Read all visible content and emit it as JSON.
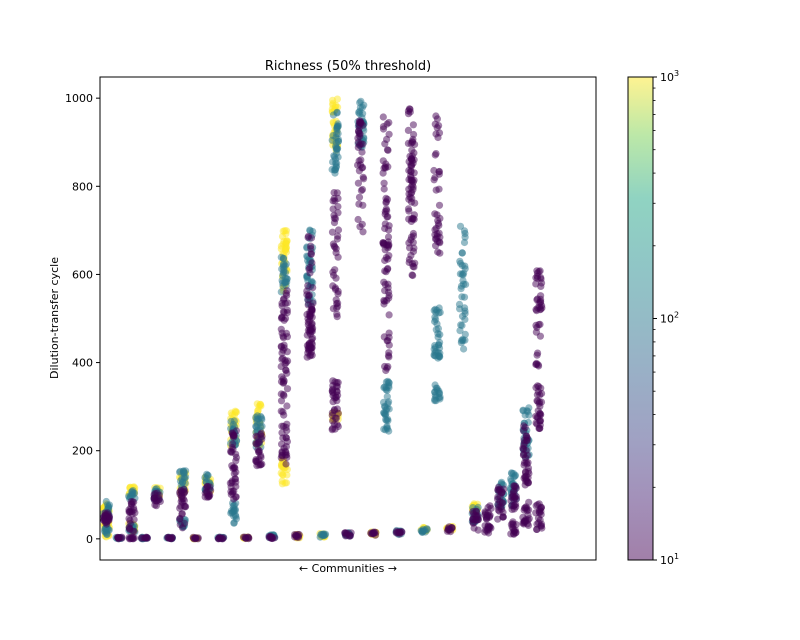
{
  "chart_data": {
    "type": "scatter",
    "title": "Richness (50% threshold)",
    "xlabel": "← Communities →",
    "ylabel": "Dilution-transfer cycle",
    "xlim": [
      -0.5,
      38.5
    ],
    "ylim": [
      -48,
      1048
    ],
    "yticks": [
      0,
      200,
      400,
      600,
      800,
      1000
    ],
    "xticks_shown": false,
    "grid": false,
    "colormap": "viridis",
    "marker_alpha": 0.5,
    "colorbar": {
      "scale": "log",
      "range": [
        10,
        1000
      ],
      "ticks": [
        {
          "value": 10,
          "base": "10",
          "exp": "1"
        },
        {
          "value": 100,
          "base": "10",
          "exp": "2"
        },
        {
          "value": 1000,
          "base": "10",
          "exp": "3"
        }
      ]
    },
    "groups": [
      {
        "x": 0,
        "clusters": [
          [
            20,
            20,
            1000
          ],
          [
            65,
            15,
            1000
          ],
          [
            20,
            10,
            100
          ],
          [
            65,
            20,
            100
          ],
          [
            45,
            15,
            10
          ],
          [
            50,
            10,
            10
          ]
        ]
      },
      {
        "x": 1,
        "clusters": [
          [
            2,
            2,
            100
          ],
          [
            2,
            2,
            10
          ]
        ]
      },
      {
        "x": 2,
        "clusters": [
          [
            25,
            10,
            1000
          ],
          [
            110,
            12,
            1000
          ],
          [
            25,
            10,
            100
          ],
          [
            100,
            10,
            100
          ],
          [
            50,
            35,
            10
          ],
          [
            2,
            2,
            10
          ]
        ]
      },
      {
        "x": 3,
        "clusters": [
          [
            2,
            2,
            100
          ],
          [
            2,
            2,
            10
          ]
        ]
      },
      {
        "x": 4,
        "clusters": [
          [
            105,
            12,
            1000
          ],
          [
            100,
            15,
            100
          ],
          [
            90,
            15,
            10
          ]
        ]
      },
      {
        "x": 5,
        "clusters": [
          [
            2,
            2,
            100
          ],
          [
            2,
            2,
            10
          ]
        ]
      },
      {
        "x": 6,
        "clusters": [
          [
            125,
            30,
            1000
          ],
          [
            130,
            25,
            100
          ],
          [
            35,
            10,
            100
          ],
          [
            70,
            45,
            10
          ]
        ]
      },
      {
        "x": 7,
        "clusters": [
          [
            2,
            2,
            1000
          ],
          [
            2,
            2,
            10
          ]
        ]
      },
      {
        "x": 8,
        "clusters": [
          [
            125,
            20,
            1000
          ],
          [
            130,
            20,
            100
          ],
          [
            105,
            15,
            10
          ]
        ]
      },
      {
        "x": 9,
        "clusters": [
          [
            2,
            2,
            100
          ],
          [
            2,
            2,
            10
          ]
        ]
      },
      {
        "x": 10,
        "clusters": [
          [
            250,
            40,
            1000
          ],
          [
            240,
            30,
            100
          ],
          [
            60,
            25,
            100
          ],
          [
            170,
            80,
            10
          ]
        ]
      },
      {
        "x": 11,
        "clusters": [
          [
            2,
            2,
            1000
          ],
          [
            2,
            2,
            10
          ]
        ]
      },
      {
        "x": 12,
        "clusters": [
          [
            260,
            50,
            1000
          ],
          [
            245,
            40,
            100
          ],
          [
            205,
            40,
            10
          ]
        ]
      },
      {
        "x": 13,
        "clusters": [
          [
            5,
            4,
            100
          ],
          [
            4,
            4,
            10
          ]
        ]
      },
      {
        "x": 14,
        "clusters": [
          [
            150,
            30,
            1000
          ],
          [
            630,
            70,
            1000
          ],
          [
            600,
            40,
            100
          ],
          [
            270,
            110,
            10
          ],
          [
            470,
            100,
            10
          ]
        ]
      },
      {
        "x": 15,
        "clusters": [
          [
            6,
            4,
            1000
          ],
          [
            6,
            4,
            10
          ]
        ]
      },
      {
        "x": 16,
        "clusters": [
          [
            620,
            90,
            100
          ],
          [
            470,
            60,
            10
          ],
          [
            550,
            140,
            10
          ]
        ]
      },
      {
        "x": 17,
        "clusters": [
          [
            8,
            4,
            1000
          ],
          [
            8,
            4,
            100
          ]
        ]
      },
      {
        "x": 18,
        "clusters": [
          [
            940,
            60,
            1000
          ],
          [
            900,
            70,
            100
          ],
          [
            280,
            10,
            1000
          ],
          [
            650,
            150,
            10
          ],
          [
            300,
            60,
            10
          ]
        ]
      },
      {
        "x": 19,
        "clusters": [
          [
            10,
            4,
            100
          ],
          [
            10,
            4,
            10
          ]
        ]
      },
      {
        "x": 20,
        "clusters": [
          [
            940,
            60,
            100
          ],
          [
            820,
            130,
            10
          ]
        ]
      },
      {
        "x": 21,
        "clusters": [
          [
            12,
            4,
            1000
          ],
          [
            12,
            4,
            10
          ]
        ]
      },
      {
        "x": 22,
        "clusters": [
          [
            300,
            60,
            100
          ],
          [
            780,
            180,
            10
          ],
          [
            530,
            150,
            10
          ]
        ]
      },
      {
        "x": 23,
        "clusters": [
          [
            14,
            5,
            100
          ],
          [
            14,
            5,
            10
          ]
        ]
      },
      {
        "x": 24,
        "clusters": [
          [
            880,
            100,
            10
          ],
          [
            720,
            150,
            10
          ]
        ]
      },
      {
        "x": 25,
        "clusters": [
          [
            20,
            6,
            1000
          ],
          [
            18,
            6,
            100
          ]
        ]
      },
      {
        "x": 26,
        "clusters": [
          [
            470,
            60,
            100
          ],
          [
            330,
            20,
            100
          ],
          [
            800,
            170,
            10
          ]
        ]
      },
      {
        "x": 27,
        "clusters": [
          [
            25,
            8,
            1000
          ],
          [
            22,
            6,
            10
          ]
        ]
      },
      {
        "x": 28,
        "clusters": [
          [
            570,
            140,
            100
          ]
        ]
      },
      {
        "x": 29,
        "clusters": [
          [
            70,
            10,
            1000
          ],
          [
            55,
            20,
            100
          ],
          [
            40,
            25,
            10
          ]
        ]
      },
      {
        "x": 30,
        "clusters": [
          [
            60,
            15,
            10
          ],
          [
            20,
            10,
            10
          ]
        ]
      },
      {
        "x": 31,
        "clusters": [
          [
            100,
            30,
            100
          ],
          [
            80,
            40,
            10
          ]
        ]
      },
      {
        "x": 32,
        "clusters": [
          [
            110,
            40,
            100
          ],
          [
            95,
            30,
            10
          ],
          [
            25,
            15,
            10
          ]
        ]
      },
      {
        "x": 33,
        "clusters": [
          [
            240,
            60,
            100
          ],
          [
            190,
            70,
            10
          ],
          [
            60,
            30,
            10
          ]
        ]
      },
      {
        "x": 34,
        "clusters": [
          [
            500,
            110,
            10
          ],
          [
            300,
            50,
            10
          ],
          [
            50,
            30,
            10
          ]
        ]
      }
    ]
  }
}
